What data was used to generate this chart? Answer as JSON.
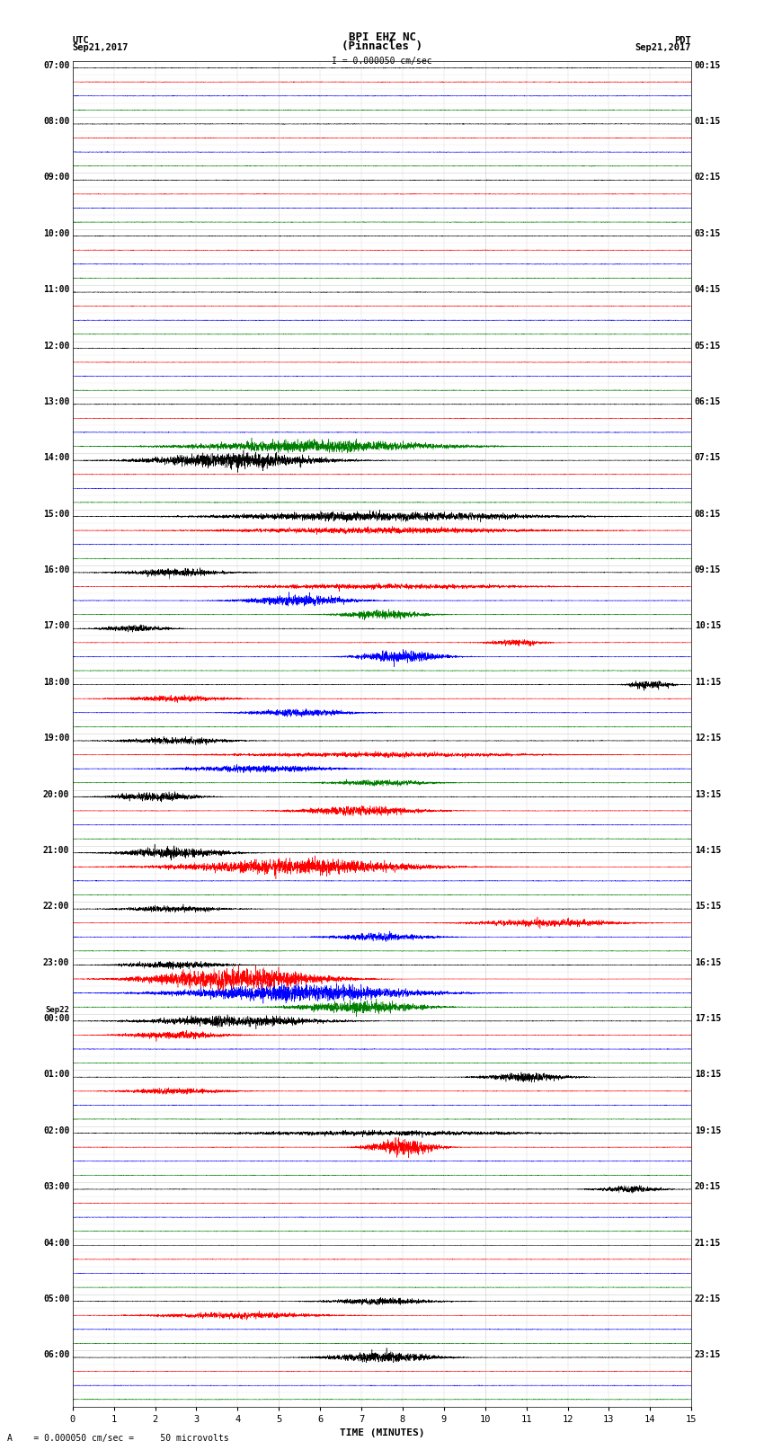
{
  "title_line1": "BPI EHZ NC",
  "title_line2": "(Pinnacles )",
  "scale_label": "I = 0.000050 cm/sec",
  "left_label_top": "UTC",
  "left_label_date": "Sep21,2017",
  "right_label_top": "PDT",
  "right_label_date": "Sep21,2017",
  "xlabel": "TIME (MINUTES)",
  "bottom_note": "A    = 0.000050 cm/sec =     50 microvolts",
  "fig_width": 8.5,
  "fig_height": 16.13,
  "dpi": 100,
  "num_rows": 96,
  "row_colors_cycle": [
    "black",
    "red",
    "blue",
    "green"
  ],
  "x_min": 0,
  "x_max": 15,
  "x_ticks": [
    0,
    1,
    2,
    3,
    4,
    5,
    6,
    7,
    8,
    9,
    10,
    11,
    12,
    13,
    14,
    15
  ],
  "noise_amplitude": 0.008,
  "left_hour_labels": [
    "07:00",
    "08:00",
    "09:00",
    "10:00",
    "11:00",
    "12:00",
    "13:00",
    "14:00",
    "15:00",
    "16:00",
    "17:00",
    "18:00",
    "19:00",
    "20:00",
    "21:00",
    "22:00",
    "23:00",
    "Sep22\n00:00",
    "01:00",
    "02:00",
    "03:00",
    "04:00",
    "05:00",
    "06:00"
  ],
  "right_hour_labels": [
    "00:15",
    "01:15",
    "02:15",
    "03:15",
    "04:15",
    "05:15",
    "06:15",
    "07:15",
    "08:15",
    "09:15",
    "10:15",
    "11:15",
    "12:15",
    "13:15",
    "14:15",
    "15:15",
    "16:15",
    "17:15",
    "18:15",
    "19:15",
    "20:15",
    "21:15",
    "22:15",
    "23:15"
  ],
  "background_color": "white",
  "grid_color": "#aaaaaa",
  "grid_color_minor": "#cccccc"
}
